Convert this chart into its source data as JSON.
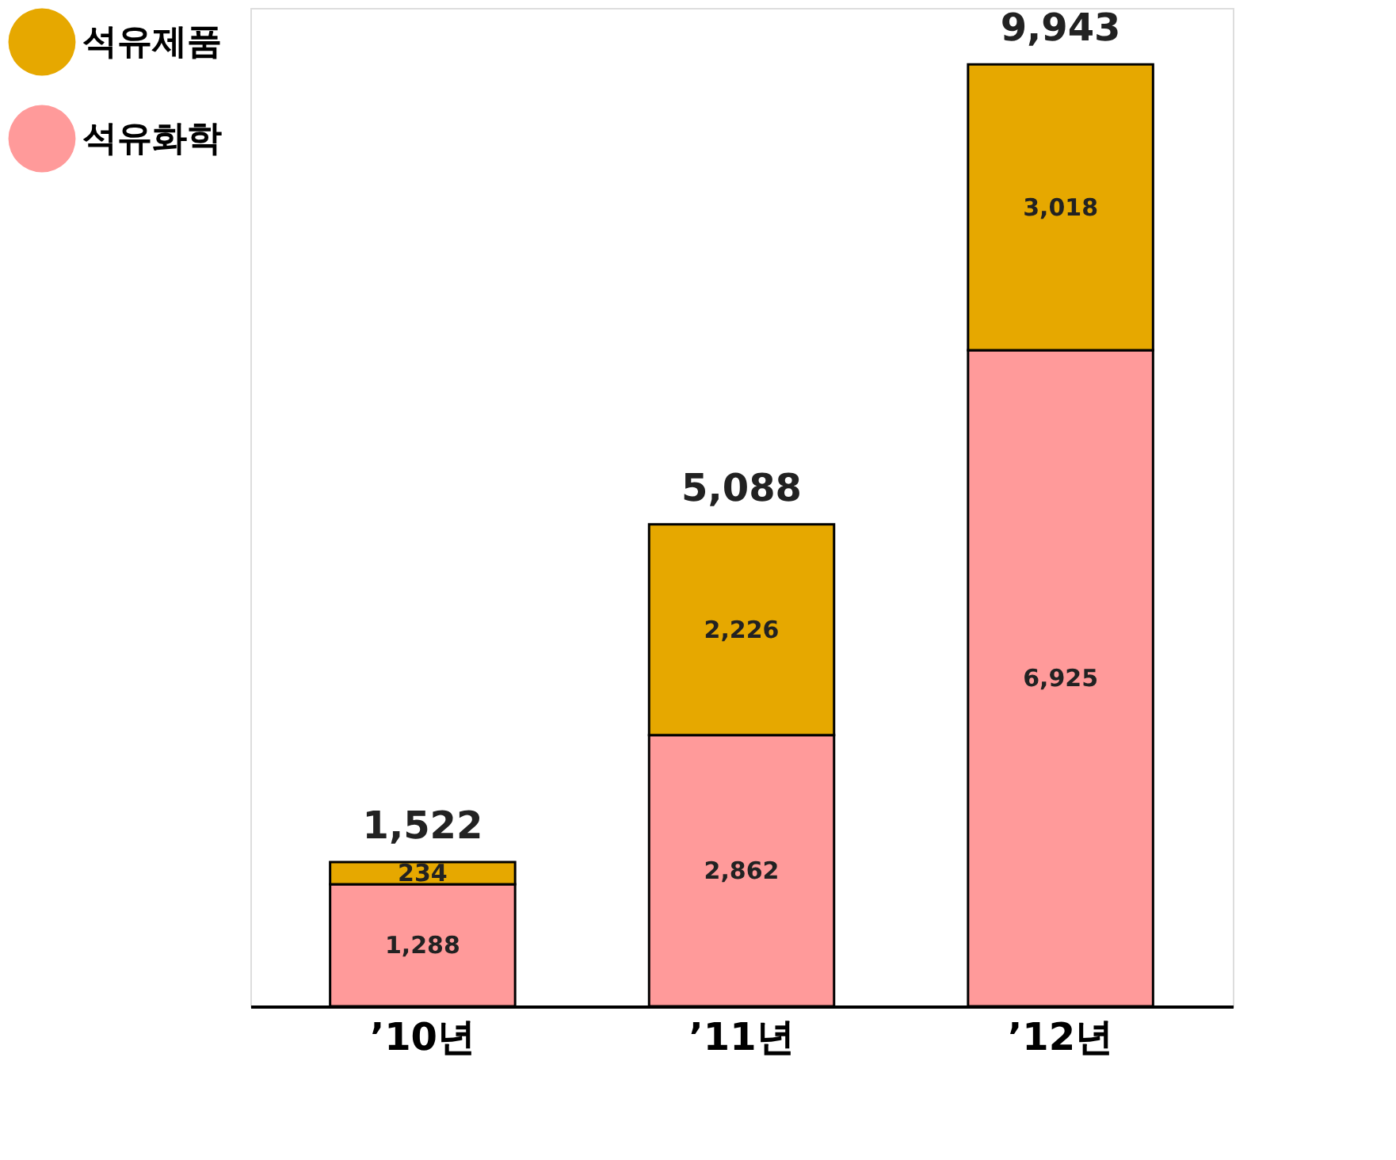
{
  "chart_data": {
    "type": "bar",
    "stacked": true,
    "categories": [
      "’10년",
      "’11년",
      "’12년"
    ],
    "series": [
      {
        "name": "석유화학",
        "color": "#ff9a9a",
        "values": [
          1288,
          2862,
          6925
        ],
        "value_labels": [
          "1,288",
          "2,862",
          "6,925"
        ]
      },
      {
        "name": "석유제품",
        "color": "#e6a800",
        "values": [
          234,
          2226,
          3018
        ],
        "value_labels": [
          "234",
          "2,226",
          "3,018"
        ]
      }
    ],
    "totals": [
      "1,522",
      "5,088",
      "9,943"
    ],
    "legend": "left",
    "grid": false,
    "tick_labels": "x"
  }
}
